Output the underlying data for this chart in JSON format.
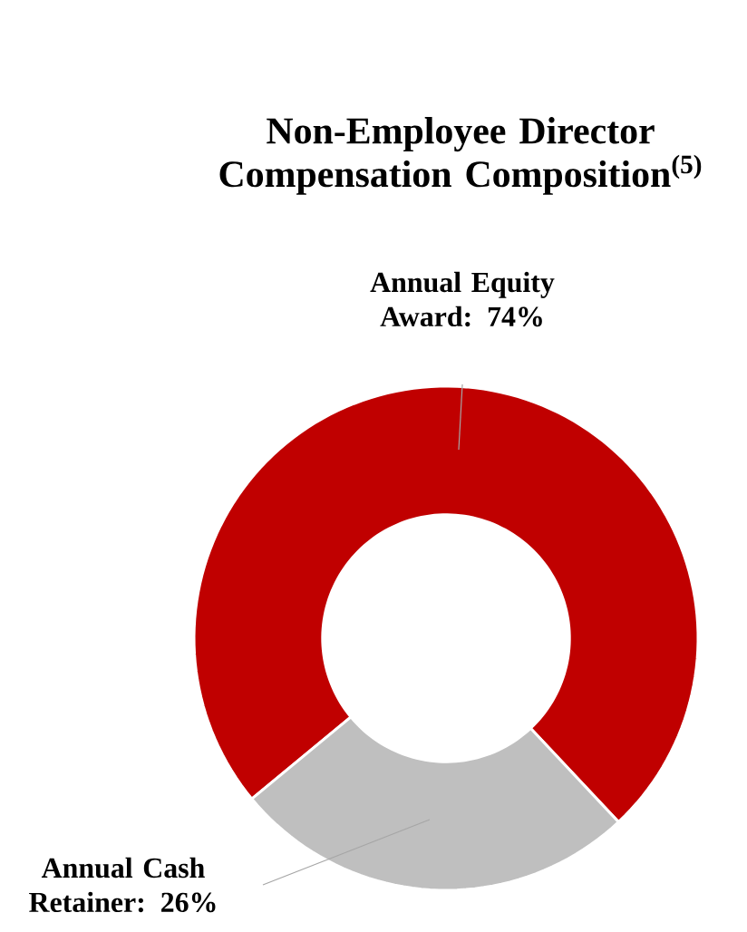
{
  "chart_data": {
    "type": "donut",
    "title": "Non-Employee Director Compensation Composition$^{(5)}$",
    "categories": [
      null,
      null
    ],
    "values": [
      74,
      26
    ],
    "colors": [
      "#c00000",
      "#bfbfbf"
    ],
    "value_labels": [
      "Annual Equity Award: 74%",
      "Annual Cash Retainer: 26%"
    ]
  }
}
